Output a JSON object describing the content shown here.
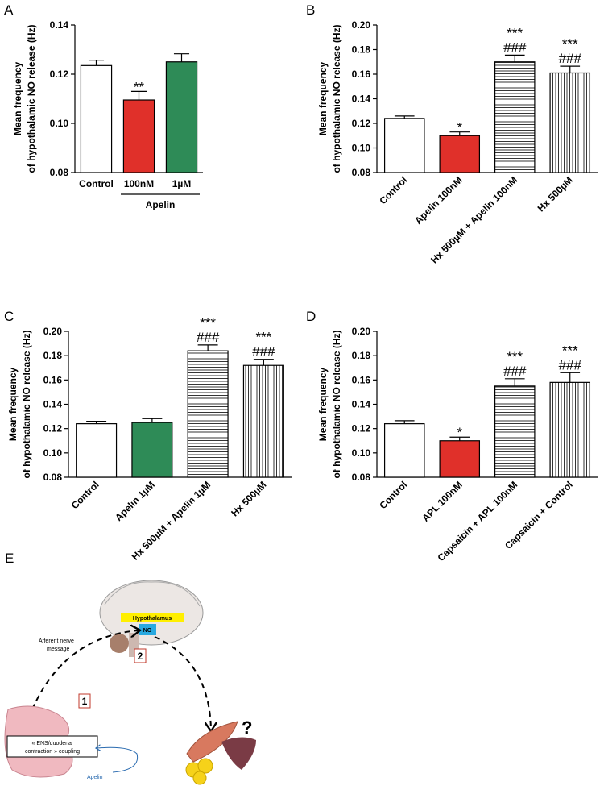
{
  "chart_data": [
    {
      "type": "bar",
      "panel": "A",
      "ylabel": [
        "Mean frequency",
        "of hypothalamic NO release (Hz)"
      ],
      "categories": [
        "Control",
        "100nM",
        "1µM"
      ],
      "group_label": "Apelin",
      "values": [
        0.1235,
        0.1095,
        0.125
      ],
      "errors": [
        0.0022,
        0.0035,
        0.0033
      ],
      "colors": [
        "#ffffff",
        "#e0302a",
        "#2e8b57"
      ],
      "patterns": [
        null,
        null,
        null
      ],
      "stars": [
        null,
        "**",
        null
      ],
      "hashes": [
        null,
        null,
        null
      ],
      "ylim": [
        0.08,
        0.14
      ],
      "yticks": [
        0.08,
        {
          "value": 0.1,
          "label": "0.10"
        },
        0.12,
        0.14
      ],
      "rotate_labels": false
    },
    {
      "type": "bar",
      "panel": "B",
      "ylabel": [
        "Mean frequency",
        "of hypothalamic NO release (Hz)"
      ],
      "categories": [
        "Control",
        "Apelin 100nM",
        "Hx 500µM + Apelin 100nM",
        "Hx 500µM"
      ],
      "values": [
        0.124,
        0.11,
        0.17,
        0.161
      ],
      "errors": [
        0.002,
        0.003,
        0.0055,
        0.0055
      ],
      "colors": [
        "#ffffff",
        "#e0302a",
        "#ffffff",
        "#ffffff"
      ],
      "patterns": [
        null,
        null,
        "horizontal",
        "vertical"
      ],
      "stars": [
        null,
        "*",
        "***",
        "***"
      ],
      "hashes": [
        null,
        null,
        "###",
        "###"
      ],
      "ylim": [
        0.08,
        0.2
      ],
      "yticks": [
        0.08,
        {
          "value": 0.1,
          "label": "0.10"
        },
        0.12,
        0.14,
        0.16,
        0.18,
        {
          "value": 0.2,
          "label": "0.20"
        }
      ],
      "rotate_labels": true
    },
    {
      "type": "bar",
      "panel": "C",
      "ylabel": [
        "Mean frequency",
        "of hypothalamic NO release (Hz)"
      ],
      "categories": [
        "Control",
        "Apelin 1µM",
        "Hx 500µM + Apelin 1µM",
        "Hx 500µM"
      ],
      "values": [
        0.124,
        0.125,
        0.184,
        0.172
      ],
      "errors": [
        0.002,
        0.0032,
        0.0048,
        0.005
      ],
      "colors": [
        "#ffffff",
        "#2e8b57",
        "#ffffff",
        "#ffffff"
      ],
      "patterns": [
        null,
        null,
        "horizontal",
        "vertical"
      ],
      "stars": [
        null,
        null,
        "***",
        "***"
      ],
      "hashes": [
        null,
        null,
        "###",
        "###"
      ],
      "ylim": [
        0.08,
        0.2
      ],
      "yticks": [
        0.08,
        {
          "value": 0.1,
          "label": "0.10"
        },
        0.12,
        0.14,
        0.16,
        0.18,
        {
          "value": 0.2,
          "label": "0.20"
        }
      ],
      "rotate_labels": true
    },
    {
      "type": "bar",
      "panel": "D",
      "ylabel": [
        "Mean frequency",
        "of hypothalamic NO release (Hz)"
      ],
      "categories": [
        "Control",
        "APL 100nM",
        "Capsaicin + APL 100nM",
        "Capsaicin + Control"
      ],
      "values": [
        0.124,
        0.11,
        0.155,
        0.158
      ],
      "errors": [
        0.0025,
        0.003,
        0.006,
        0.008
      ],
      "colors": [
        "#ffffff",
        "#e0302a",
        "#ffffff",
        "#ffffff"
      ],
      "patterns": [
        null,
        null,
        "horizontal",
        "vertical"
      ],
      "stars": [
        null,
        "*",
        "***",
        "***"
      ],
      "hashes": [
        null,
        null,
        "###",
        "###"
      ],
      "ylim": [
        0.08,
        0.2
      ],
      "yticks": [
        0.08,
        {
          "value": 0.1,
          "label": "0.10"
        },
        0.12,
        0.14,
        0.16,
        0.18,
        {
          "value": 0.2,
          "label": "0.20"
        }
      ],
      "rotate_labels": true
    }
  ],
  "diagram": {
    "panel": "E",
    "hypothalamus": "Hypothalamus",
    "no": "NO",
    "afferent": [
      "Afferent nerve",
      "message"
    ],
    "step2": "2",
    "step1": "1",
    "coupling": [
      "« ENS/duodenal",
      "contraction » coupling"
    ],
    "question": "?",
    "apelin": "Apelin"
  }
}
